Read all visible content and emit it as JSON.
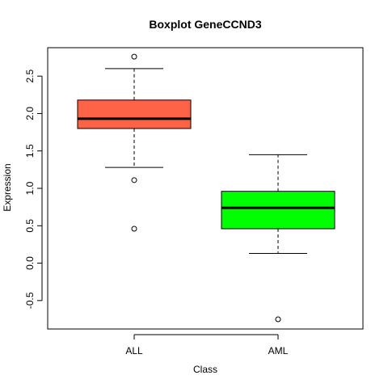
{
  "chart_data": {
    "type": "boxplot",
    "title": "Boxplot GeneCCND3",
    "xlabel": "Class",
    "ylabel": "Expression",
    "ylim": [
      -0.88,
      2.88
    ],
    "yticks": [
      "-0.5",
      "0.0",
      "0.5",
      "1.0",
      "1.5",
      "2.0",
      "2.5"
    ],
    "grid": false,
    "legend": "none",
    "boxes": [
      {
        "category": "ALL",
        "color": "#FF6347",
        "whisker_low": 1.28,
        "q1": 1.8,
        "median": 1.93,
        "q3": 2.18,
        "whisker_high": 2.6,
        "outliers": [
          2.76,
          1.11,
          0.46
        ]
      },
      {
        "category": "AML",
        "color": "#00FF00",
        "whisker_low": 0.13,
        "q1": 0.46,
        "median": 0.74,
        "q3": 0.96,
        "whisker_high": 1.45,
        "outliers": [
          -0.75
        ]
      }
    ]
  }
}
